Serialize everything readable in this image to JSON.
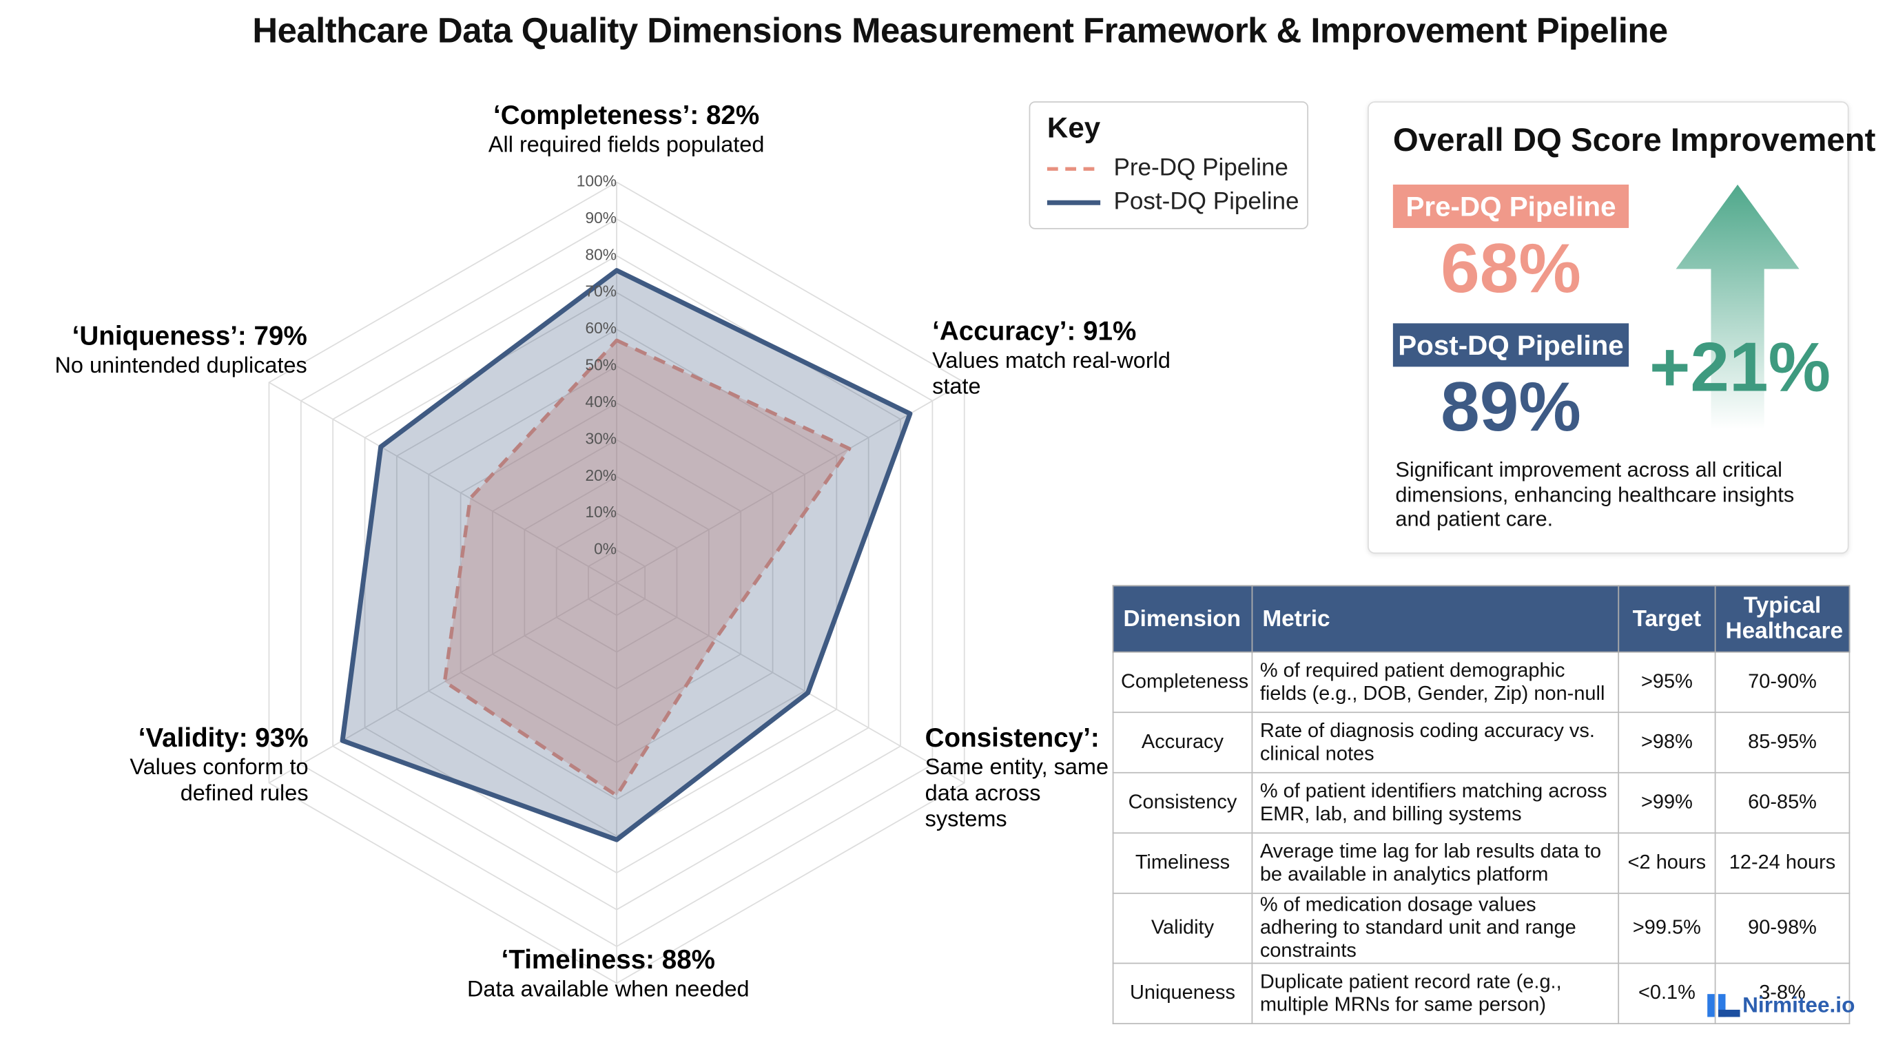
{
  "title": "Healthcare Data Quality Dimensions Measurement Framework & Improvement Pipeline",
  "chart_data": {
    "type": "radar",
    "categories": [
      "‘Completeness’: 82%",
      "‘Accuracy’: 91%",
      "Consistency’:",
      "‘Timeliness: 88%",
      "‘Validity: 93%",
      "‘Uniqueness’: 79%"
    ],
    "descriptions": [
      [
        "All required fields populated"
      ],
      [
        "Values match real-world",
        "state"
      ],
      [
        "Same entity, same",
        "data across",
        "systems"
      ],
      [
        "Data available when needed"
      ],
      [
        "Values conform to",
        "defined rules"
      ],
      [
        "No unintended duplicates"
      ]
    ],
    "ylim": [
      0,
      100
    ],
    "yticks": [
      {
        "value": 0,
        "label": "0%"
      },
      {
        "value": 10,
        "label": "10%"
      },
      {
        "value": 20,
        "label": "20%"
      },
      {
        "value": 30,
        "label": "30%"
      },
      {
        "value": 40,
        "label": "40%"
      },
      {
        "value": 50,
        "label": "50%"
      },
      {
        "value": 60,
        "label": "60%"
      },
      {
        "value": 70,
        "label": "70%"
      },
      {
        "value": 80,
        "label": "80%"
      },
      {
        "value": 90,
        "label": "90%"
      },
      {
        "value": 100,
        "label": "100%"
      }
    ],
    "grid": true,
    "legend_title": "Key",
    "legend": "top-right",
    "series": [
      {
        "name": "Pre-DQ Pipeline",
        "color": "#e8907f",
        "dashed": true,
        "values": [
          57,
          64,
          22,
          49,
          45,
          37
        ]
      },
      {
        "name": "Post-DQ Pipeline",
        "color": "#3f5a82",
        "dashed": false,
        "values": [
          76,
          83,
          51,
          61,
          77,
          65
        ]
      }
    ]
  },
  "summary": {
    "title": "Overall DQ Score Improvement",
    "pre_value": "68%",
    "post_value": "89%",
    "change": "+21%",
    "note": "Significant improvement across all critical dimensions, enhancing healthcare insights and patient care."
  },
  "table": {
    "header": [
      "Dimension",
      "Metric",
      "Target",
      "Typical Healthcare"
    ],
    "rows": [
      [
        "Completeness",
        "% of required patient demographic fields (e.g., DOB, Gender, Zip) non-null",
        ">95%",
        "70-90%"
      ],
      [
        "Accuracy",
        "Rate of diagnosis coding accuracy vs. clinical notes",
        ">98%",
        "85-95%"
      ],
      [
        "Consistency",
        "% of patient identifiers matching across EMR, lab, and billing systems",
        ">99%",
        "60-85%"
      ],
      [
        "Timeliness",
        "Average time lag for lab results data to be available in analytics platform",
        "<2 hours",
        "12-24 hours"
      ],
      [
        "Validity",
        "% of medication dosage values adhering to standard unit and range constraints",
        ">99.5%",
        "90-98%"
      ],
      [
        "Uniqueness",
        "Duplicate patient record rate (e.g., multiple MRNs for same person)",
        "<0.1%",
        "3-8%"
      ]
    ]
  },
  "logo": "Nirmitee.io"
}
